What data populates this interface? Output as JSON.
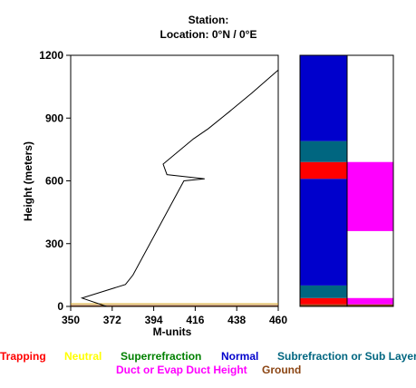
{
  "header": {
    "station_line": "Station:",
    "location_line": "Location:   0°N /   0°E"
  },
  "chart_data": {
    "type": "line",
    "title": "Station:",
    "subtitle": "Location:   0°N /   0°E",
    "xlabel": "M-units",
    "ylabel": "Height (meters)",
    "xlim": [
      350,
      460
    ],
    "ylim": [
      0,
      1200
    ],
    "x_ticks": [
      350,
      372,
      394,
      416,
      438,
      460
    ],
    "y_ticks": [
      0,
      300,
      600,
      900,
      1200
    ],
    "grid": false,
    "series": [
      {
        "color": "#000000",
        "points": [
          [
            369,
            0
          ],
          [
            356,
            40
          ],
          [
            379,
            105
          ],
          [
            383,
            150
          ],
          [
            410,
            600
          ],
          [
            421,
            610
          ],
          [
            401,
            630
          ],
          [
            399,
            680
          ],
          [
            415,
            800
          ],
          [
            423,
            850
          ],
          [
            434,
            930
          ],
          [
            446,
            1020
          ],
          [
            460,
            1130
          ]
        ]
      }
    ],
    "ground_line": {
      "y": 8,
      "color": "#8B4513"
    },
    "legend_row1": [
      {
        "label": "Trapping",
        "color": "#ff0000"
      },
      {
        "label": "Neutral",
        "color": "#ffff00"
      },
      {
        "label": "Superrefraction",
        "color": "#008000"
      },
      {
        "label": "Normal",
        "color": "#0000cc"
      },
      {
        "label": "Subrefraction or Sub Layer",
        "color": "#006680"
      }
    ],
    "legend_row2": [
      {
        "label": "Duct or Evap Duct Height",
        "color": "#ff00ff"
      },
      {
        "label": "Ground",
        "color": "#8B4513"
      }
    ],
    "refractivity_bar": [
      {
        "from": 0,
        "to": 10,
        "class": "Ground",
        "color": "#8B4513"
      },
      {
        "from": 10,
        "to": 40,
        "class": "Trapping",
        "color": "#ff0000"
      },
      {
        "from": 40,
        "to": 100,
        "class": "Subrefraction or Sub Layer",
        "color": "#006680"
      },
      {
        "from": 100,
        "to": 610,
        "class": "Normal",
        "color": "#0000cc"
      },
      {
        "from": 610,
        "to": 690,
        "class": "Trapping",
        "color": "#ff0000"
      },
      {
        "from": 690,
        "to": 790,
        "class": "Subrefraction or Sub Layer",
        "color": "#006680"
      },
      {
        "from": 790,
        "to": 1200,
        "class": "Normal",
        "color": "#0000cc"
      }
    ],
    "duct_bar": [
      {
        "from": 0,
        "to": 10,
        "class": "Ground",
        "color": "#8B4513"
      },
      {
        "from": 10,
        "to": 40,
        "class": "Duct or Evap Duct Height",
        "color": "#ff00ff"
      },
      {
        "from": 360,
        "to": 690,
        "class": "Duct or Evap Duct Height",
        "color": "#ff00ff"
      }
    ]
  }
}
